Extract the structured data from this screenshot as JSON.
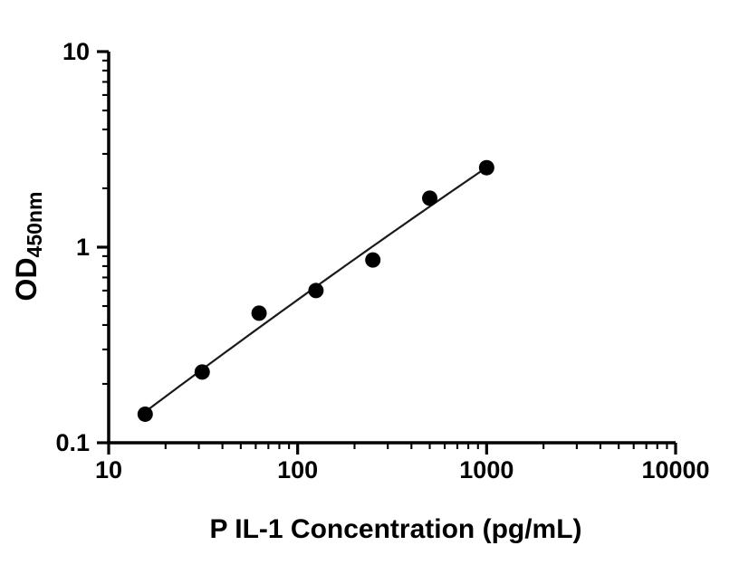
{
  "chart_data": {
    "type": "scatter",
    "title": "",
    "xlabel": "P IL-1 Concentration (pg/mL)",
    "ylabel": "OD",
    "ylabel_subscript": "450nm",
    "x_scale": "log",
    "y_scale": "log",
    "xlim": [
      10,
      10000
    ],
    "ylim": [
      0.1,
      10
    ],
    "x_ticks": [
      10,
      100,
      1000,
      10000
    ],
    "x_tick_labels": [
      "10",
      "100",
      "1000",
      "10000"
    ],
    "y_ticks": [
      0.1,
      1,
      10
    ],
    "y_tick_labels": [
      "0.1",
      "1",
      "10"
    ],
    "grid": false,
    "legend": "none",
    "axis_color": "#000000",
    "series": [
      {
        "name": "standard-curve",
        "marker": "circle",
        "marker_color": "#000000",
        "line_color": "#1a1a1a",
        "fit": "smooth",
        "x": [
          15.6,
          31.25,
          62.5,
          125,
          250,
          500,
          1000
        ],
        "y": [
          0.14,
          0.23,
          0.46,
          0.6,
          0.86,
          1.78,
          2.55
        ]
      }
    ]
  }
}
